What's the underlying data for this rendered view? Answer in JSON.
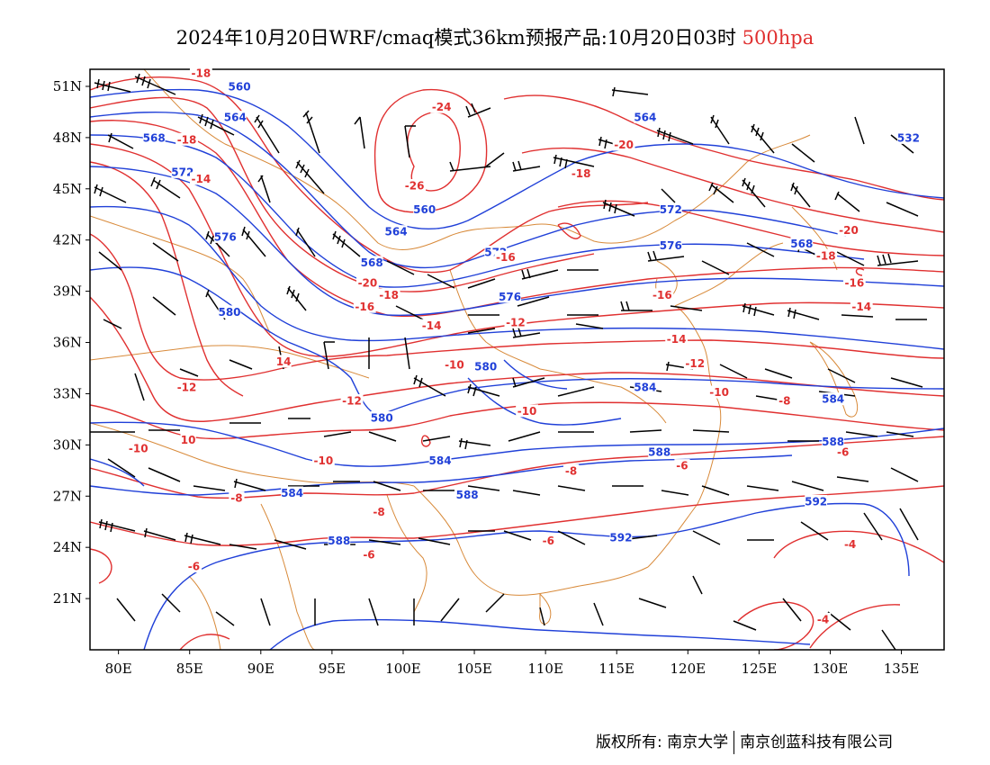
{
  "title": {
    "main": "2024年10月20日WRF/cmaq模式36km预报产品:10月20日03时",
    "level": "500hpa"
  },
  "colors": {
    "height_contour": "#2040d8",
    "temperature_contour": "#e03030",
    "boundary": "#d88a3a",
    "wind_barb": "#000000"
  },
  "axes": {
    "lon_range": [
      78,
      138
    ],
    "lat_range": [
      18,
      52
    ],
    "x_ticks": [
      "80E",
      "85E",
      "90E",
      "95E",
      "100E",
      "105E",
      "110E",
      "115E",
      "120E",
      "125E",
      "130E",
      "135E"
    ],
    "x_tick_values": [
      80,
      85,
      90,
      95,
      100,
      105,
      110,
      115,
      120,
      125,
      130,
      135
    ],
    "y_ticks": [
      "51N",
      "48N",
      "45N",
      "42N",
      "39N",
      "36N",
      "33N",
      "30N",
      "27N",
      "24N",
      "21N"
    ],
    "y_tick_values": [
      51,
      48,
      45,
      42,
      39,
      36,
      33,
      30,
      27,
      24,
      21
    ]
  },
  "height_labels": [
    {
      "text": "560",
      "lon": 88.5,
      "lat": 51
    },
    {
      "text": "564",
      "lon": 88.2,
      "lat": 49.2
    },
    {
      "text": "568",
      "lon": 82.5,
      "lat": 48
    },
    {
      "text": "572",
      "lon": 84.5,
      "lat": 46
    },
    {
      "text": "576",
      "lon": 87.5,
      "lat": 42.2
    },
    {
      "text": "580",
      "lon": 87.8,
      "lat": 37.8
    },
    {
      "text": "564",
      "lon": 117,
      "lat": 49.2
    },
    {
      "text": "532",
      "lon": 135.5,
      "lat": 48
    },
    {
      "text": "560",
      "lon": 101.5,
      "lat": 43.8
    },
    {
      "text": "564",
      "lon": 99.5,
      "lat": 42.5
    },
    {
      "text": "568",
      "lon": 97.8,
      "lat": 40.7
    },
    {
      "text": "572",
      "lon": 106.5,
      "lat": 41.3
    },
    {
      "text": "572",
      "lon": 118.8,
      "lat": 43.8
    },
    {
      "text": "576",
      "lon": 118.8,
      "lat": 41.7
    },
    {
      "text": "568",
      "lon": 128,
      "lat": 41.8
    },
    {
      "text": "576",
      "lon": 107.5,
      "lat": 38.7
    },
    {
      "text": "580",
      "lon": 105.8,
      "lat": 34.6
    },
    {
      "text": "580",
      "lon": 98.5,
      "lat": 31.6
    },
    {
      "text": "584",
      "lon": 117,
      "lat": 33.4
    },
    {
      "text": "584",
      "lon": 130.2,
      "lat": 32.7
    },
    {
      "text": "588",
      "lon": 118,
      "lat": 29.6
    },
    {
      "text": "588",
      "lon": 130.2,
      "lat": 30.2
    },
    {
      "text": "584",
      "lon": 102.6,
      "lat": 29.1
    },
    {
      "text": "588",
      "lon": 104.5,
      "lat": 27.1
    },
    {
      "text": "584",
      "lon": 92.2,
      "lat": 27.2
    },
    {
      "text": "588",
      "lon": 95.5,
      "lat": 24.4
    },
    {
      "text": "592",
      "lon": 115.3,
      "lat": 24.6
    },
    {
      "text": "592",
      "lon": 129,
      "lat": 26.7
    }
  ],
  "temperature_labels": [
    {
      "text": "-18",
      "lon": 85.8,
      "lat": 51.8
    },
    {
      "text": "-18",
      "lon": 84.8,
      "lat": 47.9
    },
    {
      "text": "-14",
      "lon": 85.8,
      "lat": 45.6
    },
    {
      "text": "-24",
      "lon": 102.7,
      "lat": 49.8
    },
    {
      "text": "-20",
      "lon": 115.5,
      "lat": 47.6
    },
    {
      "text": "-18",
      "lon": 112.5,
      "lat": 45.9
    },
    {
      "text": "-26",
      "lon": 100.8,
      "lat": 45.2
    },
    {
      "text": "-20",
      "lon": 131.3,
      "lat": 42.6
    },
    {
      "text": "-18",
      "lon": 129.7,
      "lat": 41.1
    },
    {
      "text": "-16",
      "lon": 131.7,
      "lat": 39.5
    },
    {
      "text": "-14",
      "lon": 132.2,
      "lat": 38.1
    },
    {
      "text": "-16",
      "lon": 107.2,
      "lat": 41
    },
    {
      "text": "-20",
      "lon": 97.5,
      "lat": 39.5
    },
    {
      "text": "-18",
      "lon": 99,
      "lat": 38.8
    },
    {
      "text": "-16",
      "lon": 97.3,
      "lat": 38.1
    },
    {
      "text": "-16",
      "lon": 118.2,
      "lat": 38.8
    },
    {
      "text": "-14",
      "lon": 102,
      "lat": 37
    },
    {
      "text": "-12",
      "lon": 107.9,
      "lat": 37.2
    },
    {
      "text": "-14",
      "lon": 119.2,
      "lat": 36.2
    },
    {
      "text": "14",
      "lon": 91.6,
      "lat": 34.9
    },
    {
      "text": "-12",
      "lon": 84.8,
      "lat": 33.4
    },
    {
      "text": "-10",
      "lon": 103.6,
      "lat": 34.7
    },
    {
      "text": "-12",
      "lon": 120.5,
      "lat": 34.8
    },
    {
      "text": "-10",
      "lon": 122.2,
      "lat": 33.1
    },
    {
      "text": "-12",
      "lon": 96.4,
      "lat": 32.6
    },
    {
      "text": "-8",
      "lon": 126.8,
      "lat": 32.6
    },
    {
      "text": "-10",
      "lon": 108.7,
      "lat": 32
    },
    {
      "text": "-10",
      "lon": 81.4,
      "lat": 29.8
    },
    {
      "text": "10",
      "lon": 84.9,
      "lat": 30.3
    },
    {
      "text": "-10",
      "lon": 94.4,
      "lat": 29.1
    },
    {
      "text": "-6",
      "lon": 119.6,
      "lat": 28.8
    },
    {
      "text": "-6",
      "lon": 130.9,
      "lat": 29.6
    },
    {
      "text": "-8",
      "lon": 111.8,
      "lat": 28.5
    },
    {
      "text": "-8",
      "lon": 88.3,
      "lat": 26.9
    },
    {
      "text": "-8",
      "lon": 98.3,
      "lat": 26.1
    },
    {
      "text": "-6",
      "lon": 110.2,
      "lat": 24.4
    },
    {
      "text": "-4",
      "lon": 131.4,
      "lat": 24.2
    },
    {
      "text": "-6",
      "lon": 97.6,
      "lat": 23.6
    },
    {
      "text": "-6",
      "lon": 85.3,
      "lat": 22.9
    },
    {
      "text": "-4",
      "lon": 129.5,
      "lat": 19.8
    }
  ],
  "footer": {
    "left": "版权所有: 南京大学",
    "right": "南京创蓝科技有限公司"
  }
}
